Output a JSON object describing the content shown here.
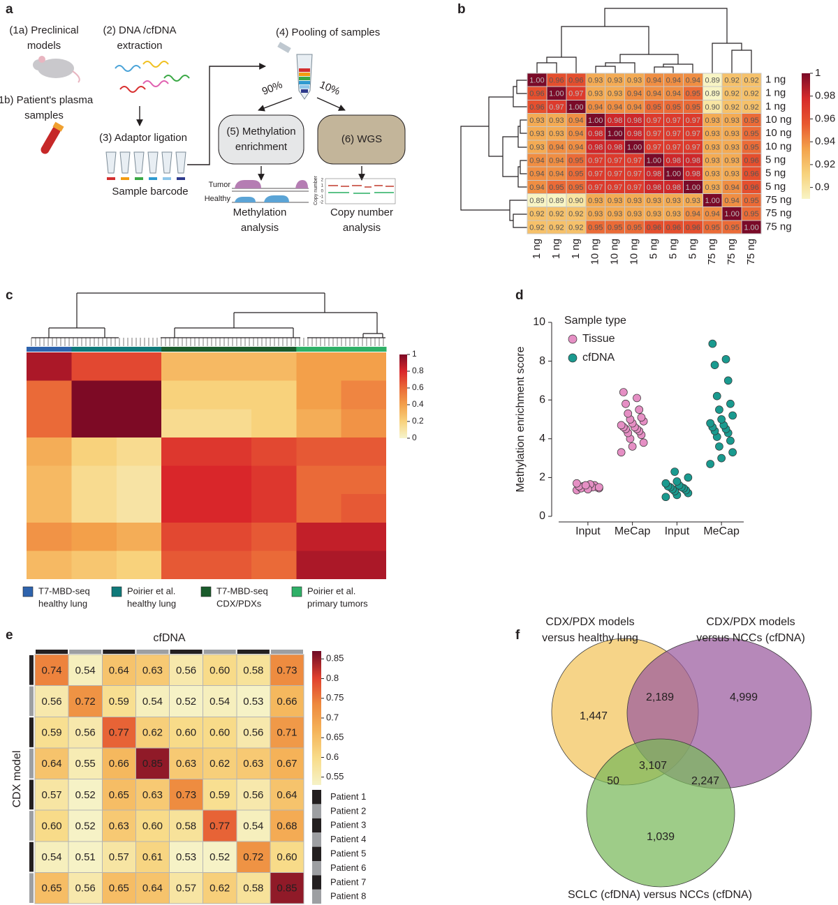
{
  "panel_labels": [
    "a",
    "b",
    "c",
    "d",
    "e",
    "f"
  ],
  "diagram": {
    "preclinical": [
      "(1a) Preclinical",
      "models"
    ],
    "plasma": [
      "(1b) Patient's plasma",
      "samples"
    ],
    "extraction": [
      "(2) DNA /cfDNA",
      "extraction"
    ],
    "ligation": "(3) Adaptor ligation",
    "barcode": "Sample barcode",
    "pooling": "(4) Pooling of samples",
    "split": [
      "90%",
      "10%"
    ],
    "enrichment": [
      "(5) Methylation",
      "enrichment"
    ],
    "wgs": "(6) WGS",
    "tracks": [
      "Tumor",
      "Healthy"
    ],
    "methylation_analysis": [
      "Methylation",
      "analysis"
    ],
    "cn_axis_label": "Copy number",
    "cn_ticks": [
      "2",
      "1",
      "0",
      "-1",
      "-2"
    ],
    "cn_analysis": [
      "Copy number",
      "analysis"
    ]
  },
  "chart_data": [
    {
      "type": "heatmap",
      "rows": [
        "1 ng",
        "1 ng",
        "1 ng",
        "10 ng",
        "10 ng",
        "10 ng",
        "5 ng",
        "5 ng",
        "5 ng",
        "75 ng",
        "75 ng",
        "75 ng"
      ],
      "columns": [
        "1 ng",
        "1 ng",
        "1 ng",
        "10 ng",
        "10 ng",
        "10 ng",
        "5 ng",
        "5 ng",
        "5 ng",
        "75 ng",
        "75 ng",
        "75 ng"
      ],
      "values": [
        [
          1,
          0.96,
          0.96,
          0.93,
          0.93,
          0.93,
          0.94,
          0.94,
          0.94,
          0.89,
          0.92,
          0.92
        ],
        [
          0.96,
          1,
          0.97,
          0.93,
          0.93,
          0.94,
          0.94,
          0.94,
          0.95,
          0.89,
          0.92,
          0.92
        ],
        [
          0.96,
          0.97,
          1,
          0.94,
          0.94,
          0.94,
          0.95,
          0.95,
          0.95,
          0.9,
          0.92,
          0.92
        ],
        [
          0.93,
          0.93,
          0.94,
          1,
          0.98,
          0.98,
          0.97,
          0.97,
          0.97,
          0.93,
          0.93,
          0.95
        ],
        [
          0.93,
          0.93,
          0.94,
          0.98,
          1,
          0.98,
          0.97,
          0.97,
          0.97,
          0.93,
          0.93,
          0.95
        ],
        [
          0.93,
          0.94,
          0.94,
          0.98,
          0.98,
          1,
          0.97,
          0.97,
          0.97,
          0.93,
          0.93,
          0.95
        ],
        [
          0.94,
          0.94,
          0.95,
          0.97,
          0.97,
          0.97,
          1,
          0.98,
          0.98,
          0.93,
          0.93,
          0.96
        ],
        [
          0.94,
          0.94,
          0.95,
          0.97,
          0.97,
          0.97,
          0.98,
          1,
          0.98,
          0.93,
          0.93,
          0.96
        ],
        [
          0.94,
          0.95,
          0.95,
          0.97,
          0.97,
          0.97,
          0.98,
          0.98,
          1,
          0.93,
          0.94,
          0.96
        ],
        [
          0.89,
          0.89,
          0.9,
          0.93,
          0.93,
          0.93,
          0.93,
          0.93,
          0.93,
          1,
          0.94,
          0.95
        ],
        [
          0.92,
          0.92,
          0.92,
          0.93,
          0.93,
          0.93,
          0.93,
          0.93,
          0.94,
          0.94,
          1,
          0.95
        ],
        [
          0.92,
          0.92,
          0.92,
          0.95,
          0.95,
          0.95,
          0.96,
          0.96,
          0.96,
          0.95,
          0.95,
          1
        ]
      ],
      "value_labels": [
        [
          "1.00",
          "0.96",
          "0.96",
          "0.93",
          "0.93",
          "0.93",
          "0.94",
          "0.94",
          "0.94",
          "0.89",
          "0.92",
          "0.92"
        ],
        [
          "0.96",
          "1.00",
          "0.97",
          "0.93",
          "0.93",
          "0.94",
          "0.94",
          "0.94",
          "0.95",
          "0.89",
          "0.92",
          "0.92"
        ],
        [
          "0.96",
          "0.97",
          "1.00",
          "0.94",
          "0.94",
          "0.94",
          "0.95",
          "0.95",
          "0.95",
          "0.90",
          "0.92",
          "0.92"
        ],
        [
          "0.93",
          "0.93",
          "0.94",
          "1.00",
          "0.98",
          "0.98",
          "0.97",
          "0.97",
          "0.97",
          "0.93",
          "0.93",
          "0.95"
        ],
        [
          "0.93",
          "0.93",
          "0.94",
          "0.98",
          "1.00",
          "0.98",
          "0.97",
          "0.97",
          "0.97",
          "0.93",
          "0.93",
          "0.95"
        ],
        [
          "0.93",
          "0.94",
          "0.94",
          "0.98",
          "0.98",
          "1.00",
          "0.97",
          "0.97",
          "0.97",
          "0.93",
          "0.93",
          "0.95"
        ],
        [
          "0.94",
          "0.94",
          "0.95",
          "0.97",
          "0.97",
          "0.97",
          "1.00",
          "0.98",
          "0.98",
          "0.93",
          "0.93",
          "0.96"
        ],
        [
          "0.94",
          "0.94",
          "0.95",
          "0.97",
          "0.97",
          "0.97",
          "0.98",
          "1.00",
          "0.98",
          "0.93",
          "0.93",
          "0.96"
        ],
        [
          "0.94",
          "0.95",
          "0.95",
          "0.97",
          "0.97",
          "0.97",
          "0.98",
          "0.98",
          "1.00",
          "0.93",
          "0.94",
          "0.96"
        ],
        [
          "0.89",
          "0.89",
          "0.90",
          "0.93",
          "0.93",
          "0.93",
          "0.93",
          "0.93",
          "0.93",
          "1.00",
          "0.94",
          "0.95"
        ],
        [
          "0.92",
          "0.92",
          "0.92",
          "0.93",
          "0.93",
          "0.93",
          "0.93",
          "0.93",
          "0.94",
          "0.94",
          "1.00",
          "0.95"
        ],
        [
          "0.92",
          "0.92",
          "0.92",
          "0.95",
          "0.95",
          "0.95",
          "0.96",
          "0.96",
          "0.96",
          "0.95",
          "0.95",
          "1.00"
        ]
      ],
      "zlim": [
        0.89,
        1
      ],
      "zticks": [
        1,
        0.98,
        0.96,
        0.94,
        0.92,
        0.9
      ],
      "colormap": [
        "#f8f4c4",
        "#f7d27c",
        "#f3a24b",
        "#e8572f",
        "#d62a2a",
        "#7a0a28"
      ]
    },
    {
      "type": "heatmap",
      "rows": [
        null,
        null,
        null,
        null,
        null,
        null,
        null,
        null
      ],
      "columns": [
        null,
        null,
        null,
        null,
        null,
        null,
        null,
        null
      ],
      "values": [
        [
          0.9,
          0.7,
          0.7,
          0.3,
          0.3,
          0.3,
          0.4,
          0.4
        ],
        [
          0.6,
          1,
          1,
          0.2,
          0.2,
          0.2,
          0.4,
          0.5
        ],
        [
          0.6,
          1,
          1,
          0.15,
          0.15,
          0.2,
          0.35,
          0.45
        ],
        [
          0.35,
          0.2,
          0.15,
          0.75,
          0.75,
          0.7,
          0.65,
          0.65
        ],
        [
          0.3,
          0.15,
          0.1,
          0.8,
          0.8,
          0.75,
          0.6,
          0.6
        ],
        [
          0.3,
          0.15,
          0.1,
          0.8,
          0.8,
          0.75,
          0.6,
          0.65
        ],
        [
          0.45,
          0.4,
          0.35,
          0.7,
          0.7,
          0.65,
          0.85,
          0.85
        ],
        [
          0.3,
          0.25,
          0.2,
          0.65,
          0.65,
          0.6,
          0.9,
          0.9
        ]
      ],
      "zlim": [
        0,
        1
      ],
      "zticks": [
        1,
        0.8,
        0.6,
        0.4,
        0.2,
        0
      ],
      "colormap": [
        "#f6f4cc",
        "#f8d27c",
        "#f3a04a",
        "#ea6a38",
        "#d9262a",
        "#7d0a25"
      ],
      "groups": [
        {
          "name": [
            "T7-MBD-seq",
            "healthy lung"
          ],
          "color": "#2e63ad"
        },
        {
          "name": [
            "Poirier et al.",
            "healthy lung"
          ],
          "color": "#0f7a7a"
        },
        {
          "name": [
            "T7-MBD-seq",
            "CDX/PDXs"
          ],
          "color": "#1a5c2c"
        },
        {
          "name": [
            "Poirier et al.",
            "primary tumors"
          ],
          "color": "#2fb067"
        }
      ],
      "column_groups": [
        0,
        1,
        1,
        2,
        2,
        2,
        3,
        3
      ]
    },
    {
      "type": "strip",
      "categories": [
        "Input",
        "MeCap",
        "Input",
        "MeCap"
      ],
      "series": [
        {
          "name": "Tissue",
          "color": "#e58fc4",
          "values": [
            [
              1.35,
              1.4,
              1.45,
              1.5,
              1.5,
              1.55,
              1.6,
              1.45,
              1.5,
              1.55,
              1.65,
              1.7,
              1.4,
              1.5,
              1.6
            ],
            [
              3.3,
              3.6,
              3.8,
              4.0,
              4.2,
              4.3,
              4.4,
              4.5,
              4.5,
              4.6,
              4.6,
              4.7,
              4.8,
              4.9,
              5.0,
              5.1,
              5.3,
              5.5,
              5.8,
              6.1,
              6.4
            ],
            null,
            null
          ]
        },
        {
          "name": "cfDNA",
          "color": "#1a9a8f",
          "values": [
            null,
            null,
            [
              1.0,
              1.1,
              1.2,
              1.3,
              1.35,
              1.4,
              1.45,
              1.5,
              1.5,
              1.55,
              1.6,
              1.7,
              1.8,
              2.0,
              2.3
            ],
            [
              2.7,
              3.0,
              3.3,
              3.6,
              3.9,
              4.1,
              4.3,
              4.4,
              4.5,
              4.6,
              4.7,
              4.8,
              5.0,
              5.2,
              5.5,
              5.8,
              6.2,
              7.0,
              7.8,
              8.1,
              8.9
            ]
          ]
        }
      ],
      "ylim": [
        0,
        10
      ],
      "yticks": [
        0,
        2,
        4,
        6,
        8,
        10
      ],
      "y_label": "Methylation enrichment score",
      "legend_title": "Sample type"
    },
    {
      "type": "heatmap",
      "x_label": "cfDNA",
      "y_label": "CDX model",
      "values": [
        [
          0.74,
          0.54,
          0.64,
          0.63,
          0.56,
          0.6,
          0.58,
          0.73
        ],
        [
          0.56,
          0.72,
          0.59,
          0.54,
          0.52,
          0.54,
          0.53,
          0.66
        ],
        [
          0.59,
          0.56,
          0.77,
          0.62,
          0.6,
          0.6,
          0.56,
          0.71
        ],
        [
          0.64,
          0.55,
          0.66,
          0.85,
          0.63,
          0.62,
          0.63,
          0.67
        ],
        [
          0.57,
          0.52,
          0.65,
          0.63,
          0.73,
          0.59,
          0.56,
          0.64
        ],
        [
          0.6,
          0.52,
          0.63,
          0.6,
          0.58,
          0.77,
          0.54,
          0.68
        ],
        [
          0.54,
          0.51,
          0.57,
          0.61,
          0.53,
          0.52,
          0.72,
          0.6
        ],
        [
          0.65,
          0.56,
          0.65,
          0.64,
          0.57,
          0.62,
          0.58,
          0.85
        ]
      ],
      "value_labels": [
        [
          "0.74",
          "0.54",
          "0.64",
          "0.63",
          "0.56",
          "0.60",
          "0.58",
          "0.73"
        ],
        [
          "0.56",
          "0.72",
          "0.59",
          "0.54",
          "0.52",
          "0.54",
          "0.53",
          "0.66"
        ],
        [
          "0.59",
          "0.56",
          "0.77",
          "0.62",
          "0.60",
          "0.60",
          "0.56",
          "0.71"
        ],
        [
          "0.64",
          "0.55",
          "0.66",
          "0.85",
          "0.63",
          "0.62",
          "0.63",
          "0.67"
        ],
        [
          "0.57",
          "0.52",
          "0.65",
          "0.63",
          "0.73",
          "0.59",
          "0.56",
          "0.64"
        ],
        [
          "0.60",
          "0.52",
          "0.63",
          "0.60",
          "0.58",
          "0.77",
          "0.54",
          "0.68"
        ],
        [
          "0.54",
          "0.51",
          "0.57",
          "0.61",
          "0.53",
          "0.52",
          "0.72",
          "0.60"
        ],
        [
          "0.65",
          "0.56",
          "0.65",
          "0.64",
          "0.57",
          "0.62",
          "0.58",
          "0.85"
        ]
      ],
      "zlim": [
        0.53,
        0.87
      ],
      "zticks": [
        0.85,
        0.8,
        0.75,
        0.7,
        0.65,
        0.6,
        0.55
      ],
      "colormap": [
        "#f6f2c6",
        "#f8dc8a",
        "#f5b45a",
        "#ee8a3e",
        "#e0402e",
        "#6f0a25"
      ],
      "patients": [
        {
          "name": "Patient 1",
          "color": "#231f20"
        },
        {
          "name": "Patient 2",
          "color": "#9d9fa2"
        },
        {
          "name": "Patient 3",
          "color": "#231f20"
        },
        {
          "name": "Patient 4",
          "color": "#9d9fa2"
        },
        {
          "name": "Patient 5",
          "color": "#231f20"
        },
        {
          "name": "Patient 6",
          "color": "#9d9fa2"
        },
        {
          "name": "Patient 7",
          "color": "#231f20"
        },
        {
          "name": "Patient 8",
          "color": "#9d9fa2"
        }
      ]
    },
    {
      "type": "venn",
      "sets": [
        {
          "name": [
            "CDX/PDX models",
            "versus healthy lung"
          ],
          "color": "#f2c45a"
        },
        {
          "name": [
            "CDX/PDX models",
            "versus NCCs (cfDNA)"
          ],
          "color": "#9a5a9e"
        },
        {
          "name": [
            "SCLC (cfDNA) versus NCCs (cfDNA)"
          ],
          "color": "#79b85a"
        }
      ],
      "values": [
        1447,
        2189,
        4999,
        50,
        3107,
        2247,
        1039
      ],
      "value_labels": [
        "1,447",
        "2,189",
        "4,999",
        "50",
        "3,107",
        "2,247",
        "1,039"
      ]
    }
  ]
}
